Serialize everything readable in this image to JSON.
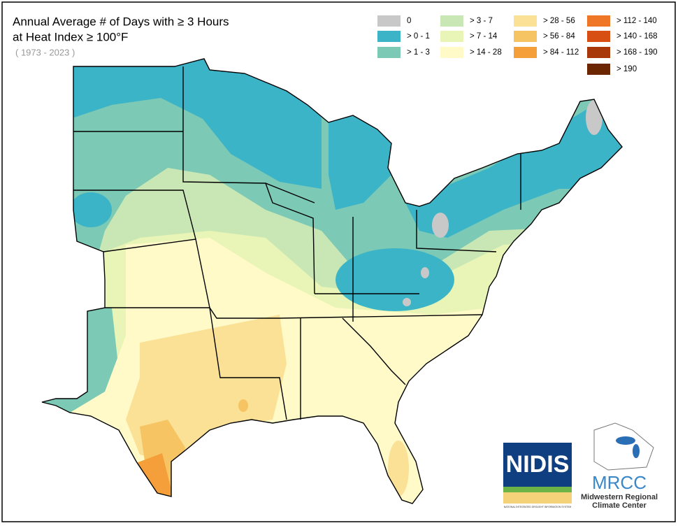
{
  "header": {
    "title_lines": [
      "Annual Average # of Days with ≥ 3 Hours",
      "at Heat Index ≥ 100°F"
    ],
    "period": "( 1973 - 2023 )"
  },
  "legend": {
    "items": [
      {
        "label": "0",
        "color": "#c8c8c8"
      },
      {
        "label": "> 0 - 1",
        "color": "#3cb4c8"
      },
      {
        "label": "> 1 - 3",
        "color": "#7cc9b5"
      },
      {
        "label": "> 3 - 7",
        "color": "#c9e7b4"
      },
      {
        "label": "> 7 - 14",
        "color": "#e8f5b6"
      },
      {
        "label": "> 14 - 28",
        "color": "#fffac8"
      },
      {
        "label": "> 28 - 56",
        "color": "#fae196"
      },
      {
        "label": "> 56 - 84",
        "color": "#f6c463"
      },
      {
        "label": "> 84 - 112",
        "color": "#f59f3a"
      },
      {
        "label": "> 112 - 140",
        "color": "#ef7627"
      },
      {
        "label": "> 140 - 168",
        "color": "#d84f13"
      },
      {
        "label": "> 168 - 190",
        "color": "#a8380a"
      },
      {
        "label": "> 190",
        "color": "#6b2600"
      }
    ]
  },
  "logos": {
    "nidis": {
      "name": "NIDIS",
      "tagline": "NATIONAL INTEGRATED DROUGHT INFORMATION SYSTEM"
    },
    "mrcc": {
      "name": "MRCC",
      "full_name_lines": [
        "Midwestern Regional",
        "Climate Center"
      ]
    }
  }
}
